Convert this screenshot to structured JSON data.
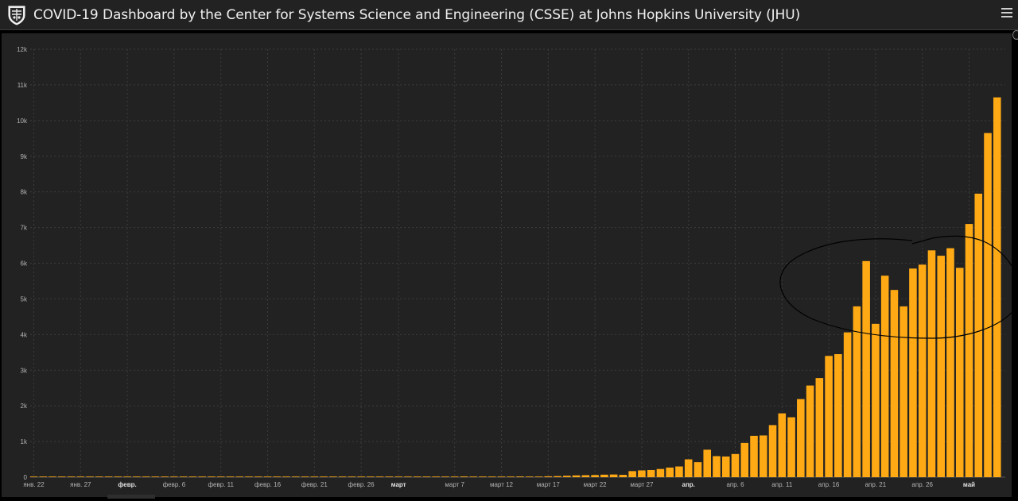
{
  "header": {
    "title": "COVID-19 Dashboard by the Center for Systems Science and Engineering (CSSE) at Johns Hopkins University (JHU)",
    "logo_icon": "jhu-shield-icon",
    "menu_icon": "hamburger-menu-icon"
  },
  "colors": {
    "bar": "#FFAA15",
    "background": "#222222",
    "header_background": "#222222",
    "grid": "#3c3c3c",
    "annotation": "#000000"
  },
  "chart_data": {
    "type": "bar",
    "title": "",
    "xlabel": "",
    "ylabel": "",
    "ylim": [
      0,
      12000
    ],
    "y_ticks": [
      {
        "value": 0,
        "label": "0"
      },
      {
        "value": 1000,
        "label": "1k"
      },
      {
        "value": 2000,
        "label": "2k"
      },
      {
        "value": 3000,
        "label": "3k"
      },
      {
        "value": 4000,
        "label": "4k"
      },
      {
        "value": 5000,
        "label": "5k"
      },
      {
        "value": 6000,
        "label": "6k"
      },
      {
        "value": 7000,
        "label": "7k"
      },
      {
        "value": 8000,
        "label": "8k"
      },
      {
        "value": 9000,
        "label": "9k"
      },
      {
        "value": 10000,
        "label": "10k"
      },
      {
        "value": 11000,
        "label": "11k"
      },
      {
        "value": 12000,
        "label": "12k"
      }
    ],
    "x_ticks": [
      {
        "index": 0,
        "label": "янв. 22",
        "bold": false
      },
      {
        "index": 5,
        "label": "янв. 27",
        "bold": false
      },
      {
        "index": 10,
        "label": "февр.",
        "bold": true
      },
      {
        "index": 15,
        "label": "февр. 6",
        "bold": false
      },
      {
        "index": 20,
        "label": "февр. 11",
        "bold": false
      },
      {
        "index": 25,
        "label": "февр. 16",
        "bold": false
      },
      {
        "index": 30,
        "label": "февр. 21",
        "bold": false
      },
      {
        "index": 35,
        "label": "февр. 26",
        "bold": false
      },
      {
        "index": 39,
        "label": "март",
        "bold": true
      },
      {
        "index": 45,
        "label": "март 7",
        "bold": false
      },
      {
        "index": 50,
        "label": "март 12",
        "bold": false
      },
      {
        "index": 55,
        "label": "март 17",
        "bold": false
      },
      {
        "index": 60,
        "label": "март 22",
        "bold": false
      },
      {
        "index": 65,
        "label": "март 27",
        "bold": false
      },
      {
        "index": 70,
        "label": "апр.",
        "bold": true
      },
      {
        "index": 75,
        "label": "апр. 6",
        "bold": false
      },
      {
        "index": 80,
        "label": "апр. 11",
        "bold": false
      },
      {
        "index": 85,
        "label": "апр. 16",
        "bold": false
      },
      {
        "index": 90,
        "label": "апр. 21",
        "bold": false
      },
      {
        "index": 95,
        "label": "апр. 26",
        "bold": false
      },
      {
        "index": 100,
        "label": "май",
        "bold": true
      }
    ],
    "values": [
      0,
      0,
      0,
      0,
      0,
      0,
      0,
      0,
      0,
      0,
      0,
      0,
      0,
      0,
      0,
      0,
      0,
      0,
      0,
      0,
      0,
      0,
      0,
      0,
      0,
      0,
      0,
      0,
      0,
      0,
      0,
      0,
      0,
      0,
      0,
      0,
      0,
      0,
      0,
      0,
      0,
      2,
      3,
      3,
      3,
      3,
      20,
      5,
      3,
      5,
      10,
      15,
      20,
      15,
      10,
      25,
      30,
      40,
      50,
      55,
      60,
      70,
      75,
      65,
      170,
      190,
      200,
      230,
      270,
      300,
      500,
      420,
      770,
      590,
      580,
      650,
      960,
      1160,
      1170,
      1460,
      1790,
      1680,
      2190,
      2570,
      2780,
      3400,
      3450,
      4060,
      4790,
      6060,
      4300,
      5650,
      5250,
      4790,
      5850,
      5960,
      6360,
      6210,
      6420,
      5870,
      7100,
      7950,
      9650,
      10650
    ]
  }
}
